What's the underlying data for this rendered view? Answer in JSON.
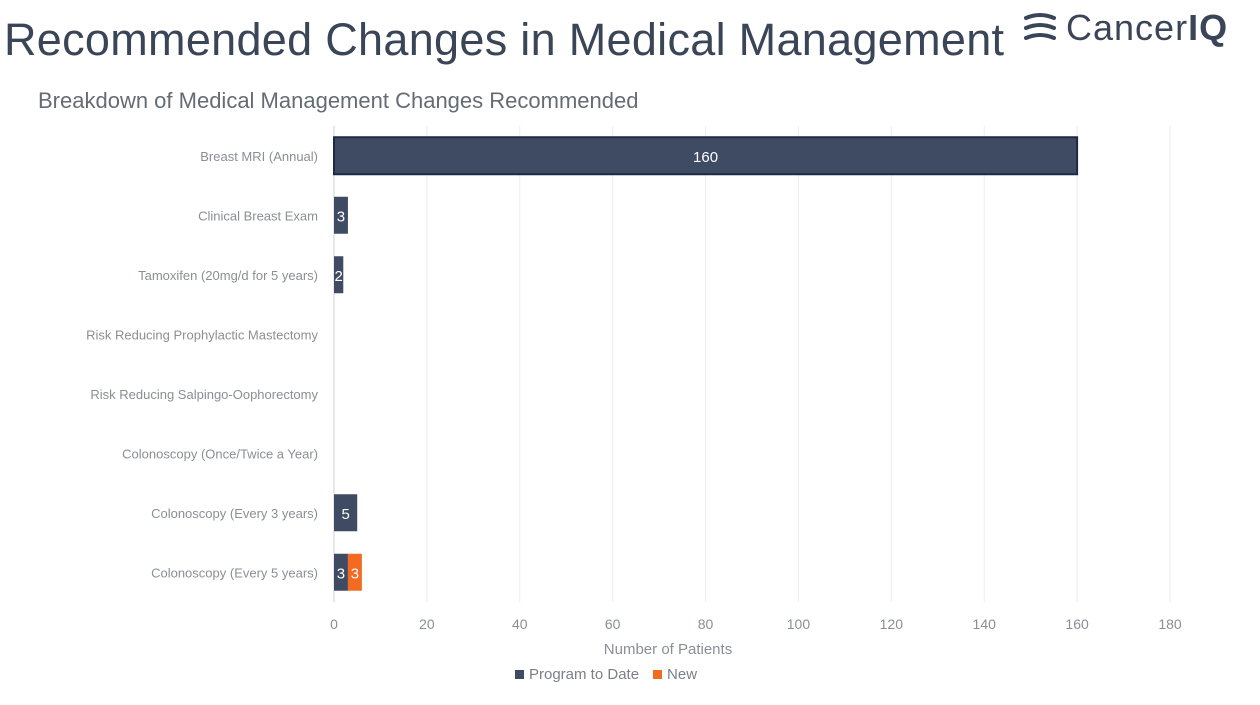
{
  "header": {
    "title": "Recommended Changes in Medical Management",
    "logo_text_light": "Cancer",
    "logo_text_bold": "IQ"
  },
  "chart_data": {
    "type": "bar",
    "orientation": "horizontal",
    "stacked": true,
    "title": "Breakdown of Medical Management Changes Recommended",
    "xlabel": "Number of Patients",
    "ylabel": "",
    "xlim": [
      0,
      180
    ],
    "x_ticks": [
      0,
      20,
      40,
      60,
      80,
      100,
      120,
      140,
      160,
      180
    ],
    "grid": true,
    "legend_position": "bottom",
    "categories": [
      "Breast MRI (Annual)",
      "Clinical Breast Exam",
      "Tamoxifen (20mg/d for 5 years)",
      "Risk Reducing Prophylactic Mastectomy",
      "Risk Reducing Salpingo-Oophorectomy",
      "Colonoscopy (Once/Twice a Year)",
      "Colonoscopy (Every 3 years)",
      "Colonoscopy (Every 5 years)"
    ],
    "series": [
      {
        "name": "Program to Date",
        "color": "#3e4b63",
        "values": [
          160,
          3,
          2,
          0,
          0,
          0,
          5,
          3
        ]
      },
      {
        "name": "New",
        "color": "#f26b21",
        "values": [
          0,
          0,
          0,
          0,
          0,
          0,
          0,
          3
        ]
      }
    ]
  }
}
